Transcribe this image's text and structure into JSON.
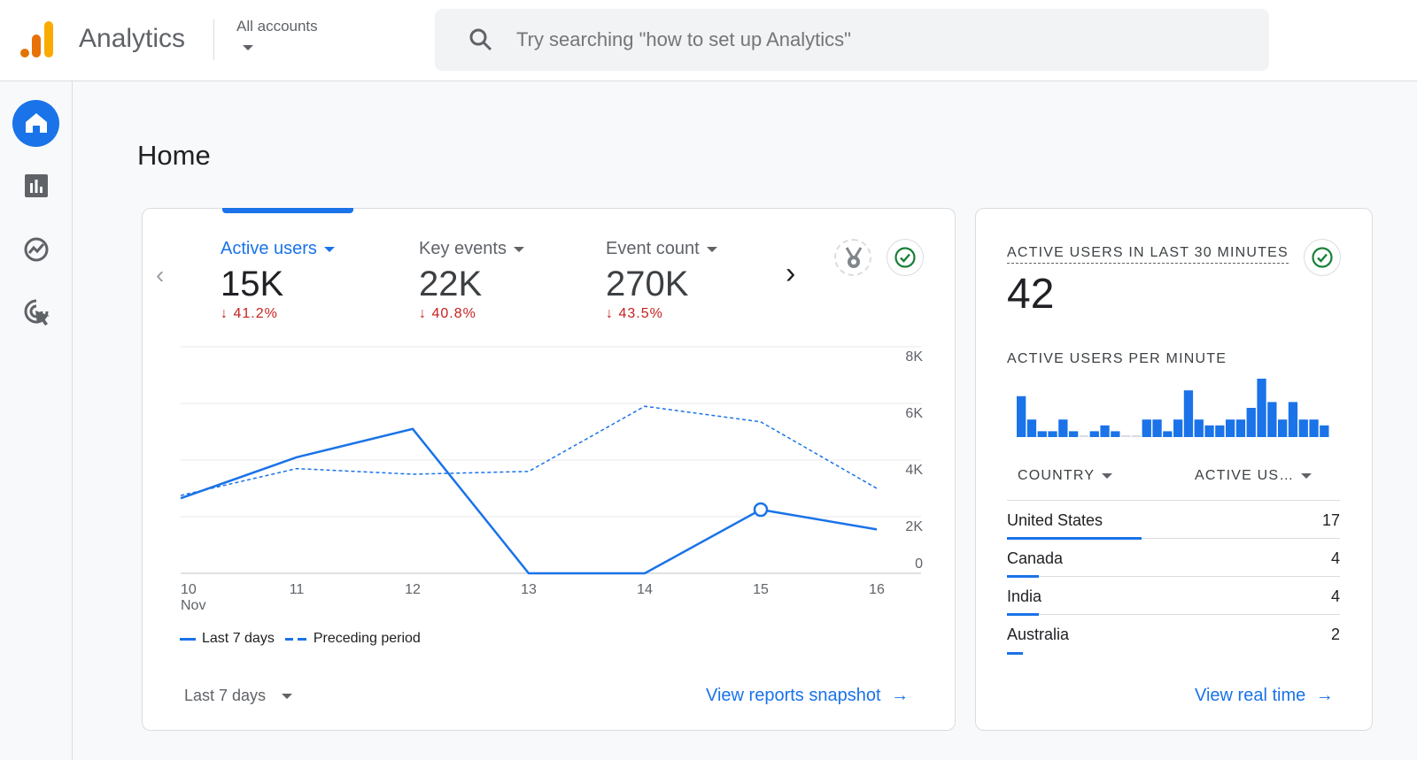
{
  "header": {
    "app_title": "Analytics",
    "account_selector": "All accounts",
    "search_placeholder": "Try searching \"how to set up Analytics\""
  },
  "sidebar": {
    "items": [
      {
        "icon": "home-icon",
        "active": true
      },
      {
        "icon": "reports-icon"
      },
      {
        "icon": "explore-icon"
      },
      {
        "icon": "advertising-icon"
      }
    ]
  },
  "page": {
    "title": "Home"
  },
  "overview": {
    "metrics": [
      {
        "label": "Active users",
        "value": "15K",
        "delta": "41.2%",
        "active": true
      },
      {
        "label": "Key events",
        "value": "22K",
        "delta": "40.8%"
      },
      {
        "label": "Event count",
        "value": "270K",
        "delta": "43.5%"
      }
    ],
    "legend": {
      "current": "Last 7 days",
      "previous": "Preceding period"
    },
    "date_range": "Last 7 days",
    "link": "View reports snapshot",
    "colors": {
      "accent": "#1a73e8",
      "negative": "#c5221f"
    }
  },
  "chart_data": {
    "type": "line",
    "x": [
      "10",
      "11",
      "12",
      "13",
      "14",
      "15",
      "16"
    ],
    "x_sublabel": "Nov",
    "y_ticks": [
      "0",
      "2K",
      "4K",
      "6K",
      "8K"
    ],
    "ylim": [
      0,
      8000
    ],
    "grid": true,
    "legend_placement": "bottom-left",
    "series": [
      {
        "name": "Last 7 days",
        "style": "solid",
        "values": [
          2650,
          4100,
          5100,
          0,
          0,
          2250,
          1550
        ]
      },
      {
        "name": "Preceding period",
        "style": "dashed",
        "values": [
          2750,
          3700,
          3500,
          3600,
          5900,
          5350,
          3000
        ]
      }
    ]
  },
  "realtime": {
    "title": "ACTIVE USERS IN LAST 30 MINUTES",
    "value": "42",
    "per_minute_label": "ACTIVE USERS PER MINUTE",
    "per_minute": [
      7,
      3,
      1,
      1,
      3,
      1,
      0,
      1,
      2,
      1,
      0,
      0,
      3,
      3,
      1,
      3,
      8,
      3,
      2,
      2,
      3,
      3,
      5,
      10,
      6,
      3,
      6,
      3,
      3,
      2
    ],
    "col_country": "COUNTRY",
    "col_users": "ACTIVE US…",
    "rows": [
      {
        "country": "United States",
        "users": "17",
        "share": 0.405
      },
      {
        "country": "Canada",
        "users": "4",
        "share": 0.095
      },
      {
        "country": "India",
        "users": "4",
        "share": 0.095
      },
      {
        "country": "Australia",
        "users": "2",
        "share": 0.048
      }
    ],
    "link": "View real time"
  }
}
